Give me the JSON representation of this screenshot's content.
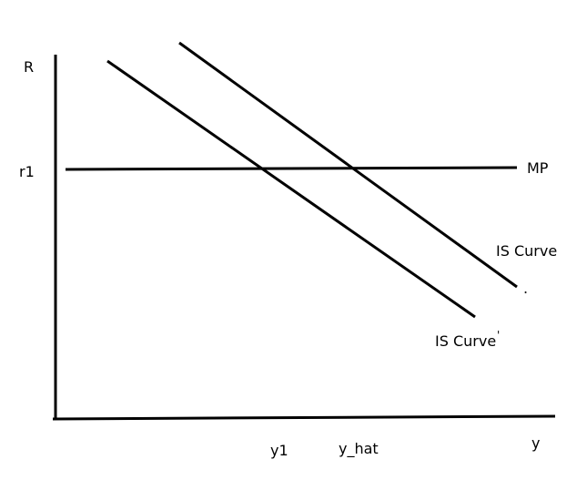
{
  "labels": {
    "y_axis": "R",
    "x_axis": "y",
    "r1": "r1",
    "mp": "MP",
    "is_curve": "IS Curve",
    "is_curve_shifted": "IS Curve",
    "is_curve_shifted_mark": "'",
    "stray_dot": ".",
    "y1": "y1",
    "y_hat": "y_hat"
  },
  "colors": {
    "line": "#000000",
    "background": "#ffffff"
  }
}
